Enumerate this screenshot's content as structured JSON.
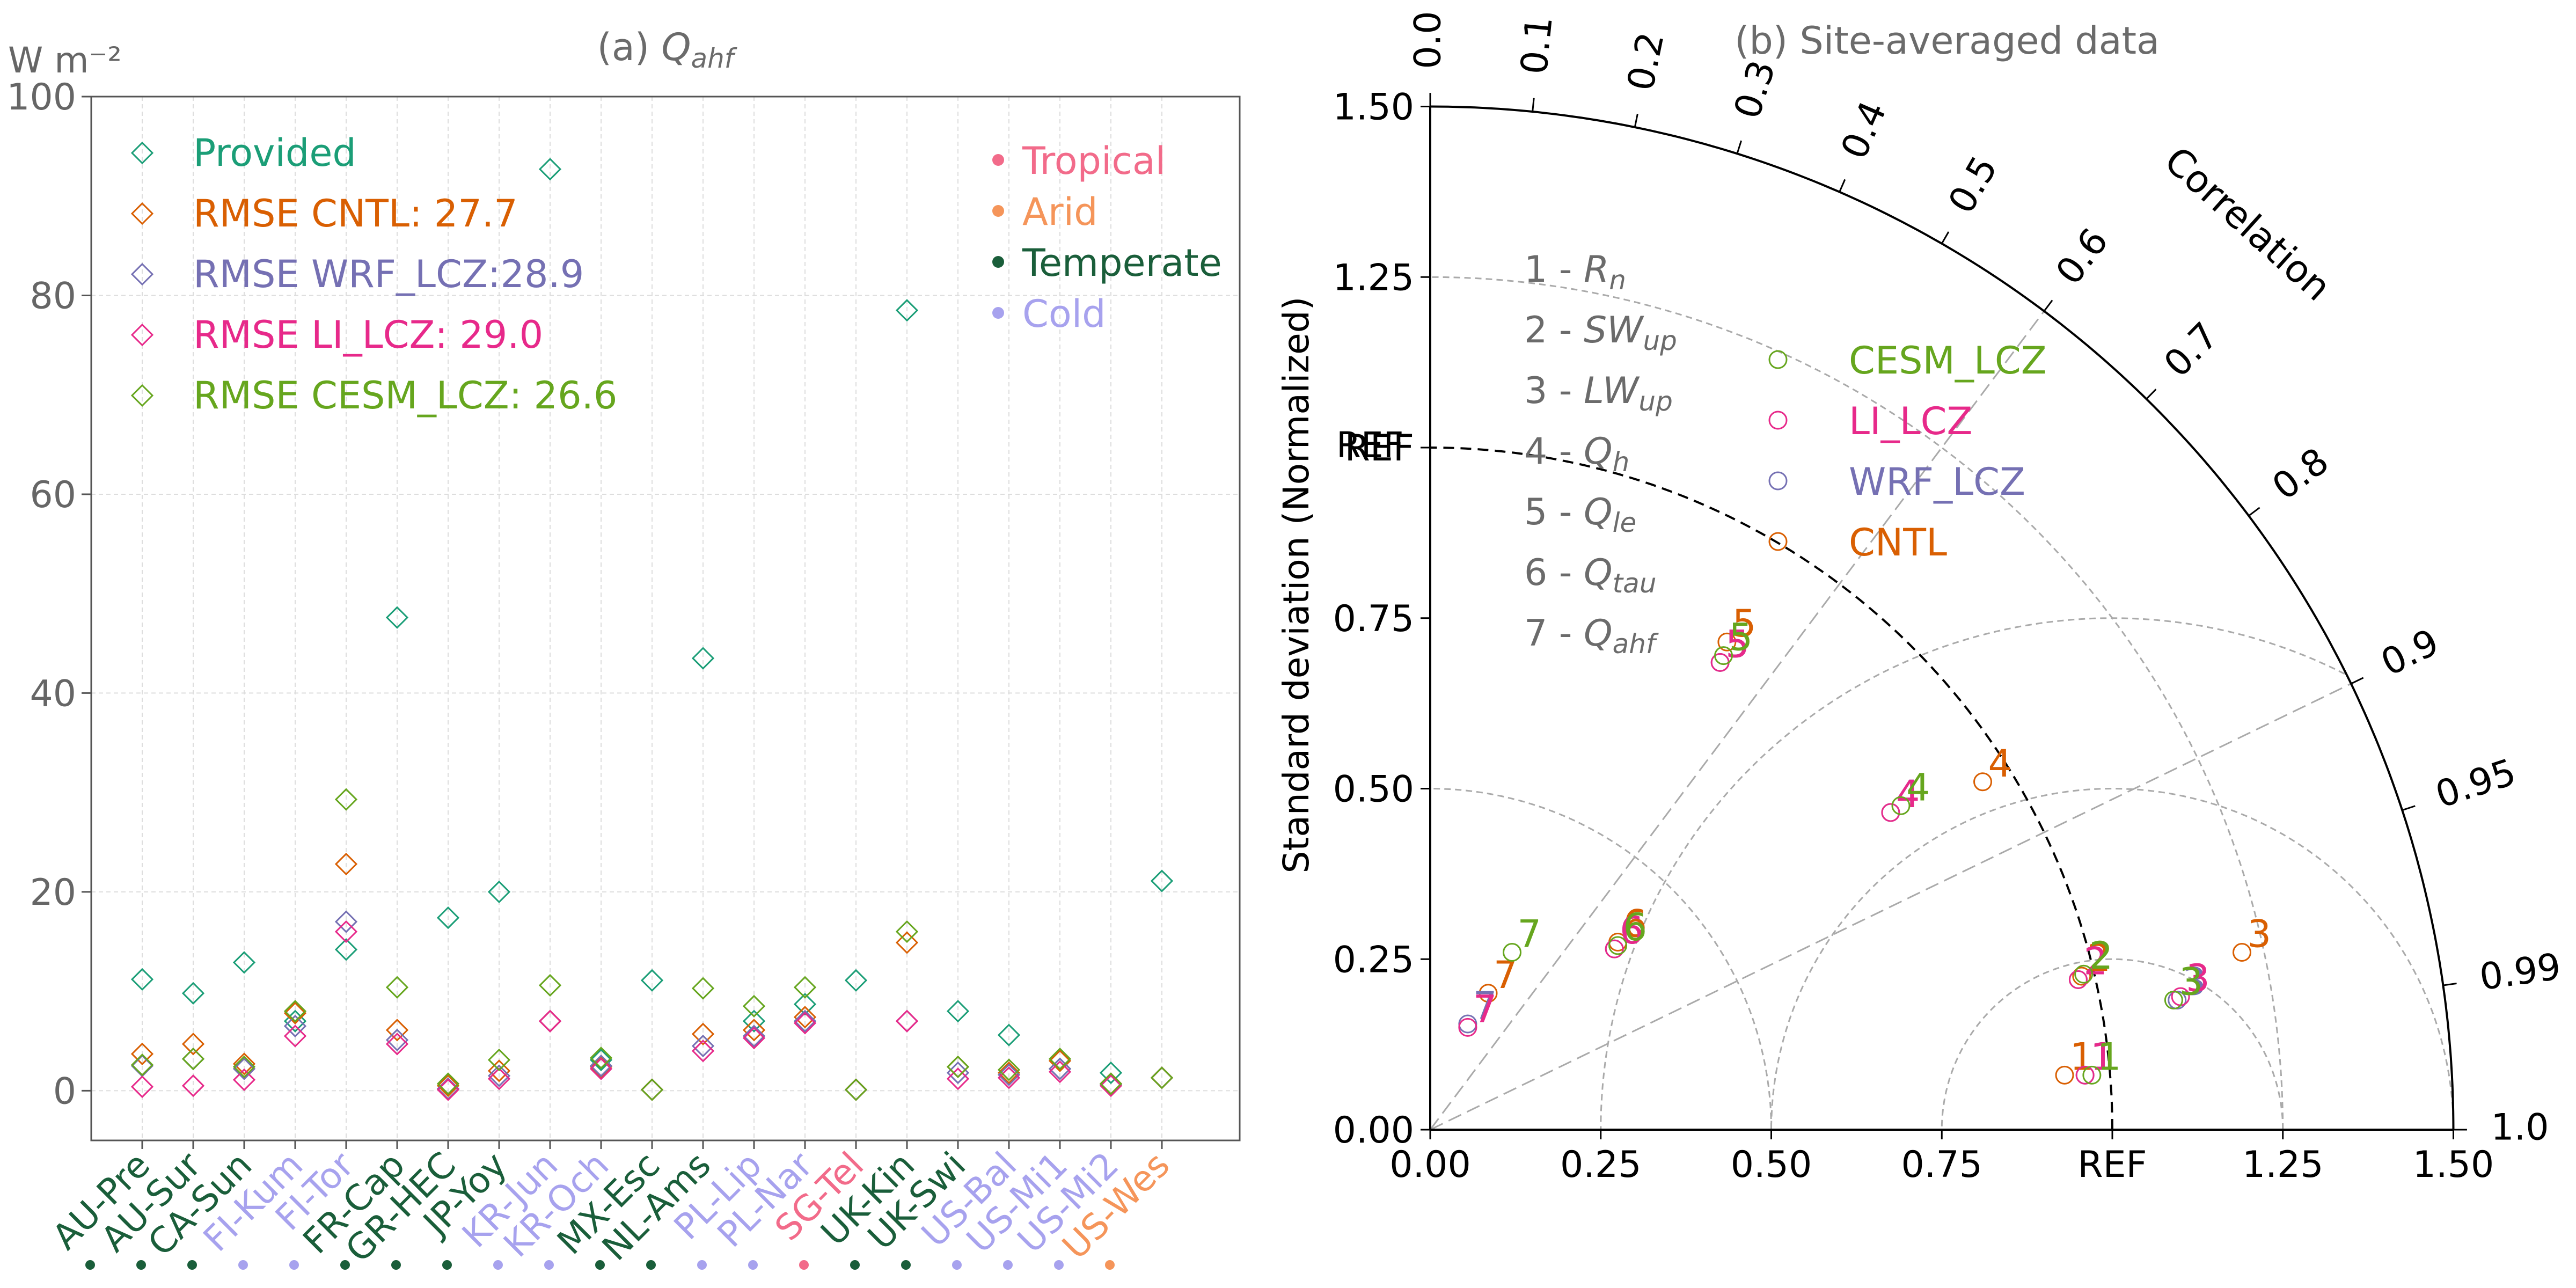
{
  "colors": {
    "provided": "#1b9e77",
    "cntl": "#d95f02",
    "wrf_lcz": "#7570b3",
    "li_lcz": "#e7298a",
    "cesm_lcz": "#66a61e",
    "tropical": "#f26b8a",
    "arid": "#f5955a",
    "temperate": "#1a5e3a",
    "cold": "#a7a2ee",
    "title_gray": "#6b6b6b",
    "axis_gray": "#666666",
    "grid_gray": "#dddddd",
    "guide_gray": "#aaaaaa"
  },
  "chart_data": [
    {
      "type": "scatter",
      "title_prefix": "(a) ",
      "title_symbol": "Q",
      "title_subscript": "ahf",
      "ylabel": "W m⁻²",
      "ylim": [
        -5,
        100
      ],
      "yticks": [
        0,
        20,
        40,
        60,
        80,
        100
      ],
      "grid": true,
      "marker": "diamond",
      "legend_position": "top-left",
      "sites": [
        "AU-Pre",
        "AU-Sur",
        "CA-Sun",
        "FI-Kum",
        "FI-Tor",
        "FR-Cap",
        "GR-HEC",
        "JP-Yoy",
        "KR-Jun",
        "KR-Och",
        "MX-Esc",
        "NL-Ams",
        "PL-Lip",
        "PL-Nar",
        "SG-Tel",
        "UK-Kin",
        "UK-Swi",
        "US-Bal",
        "US-Mi1",
        "US-Mi2",
        "US-Wes"
      ],
      "site_climate": [
        "temperate",
        "temperate",
        "temperate",
        "cold",
        "cold",
        "temperate",
        "temperate",
        "temperate",
        "cold",
        "cold",
        "temperate",
        "temperate",
        "cold",
        "cold",
        "tropical",
        "temperate",
        "temperate",
        "cold",
        "cold",
        "cold",
        "arid"
      ],
      "climate_legend": [
        {
          "key": "tropical",
          "label": "Tropical"
        },
        {
          "key": "arid",
          "label": "Arid"
        },
        {
          "key": "temperate",
          "label": "Temperate"
        },
        {
          "key": "cold",
          "label": "Cold"
        }
      ],
      "series": [
        {
          "key": "provided",
          "name": "Provided",
          "values": [
            11.2,
            9.8,
            12.9,
            7.0,
            14.2,
            47.6,
            17.4,
            20.0,
            92.7,
            3.1,
            11.1,
            43.5,
            7.0,
            8.7,
            11.1,
            78.5,
            8.0,
            5.6,
            2.2,
            1.8,
            21.1
          ]
        },
        {
          "key": "cntl",
          "name": "RMSE CNTL: 27.7",
          "values": [
            3.7,
            4.7,
            2.7,
            7.8,
            22.8,
            6.1,
            0.5,
            2.0,
            7.0,
            2.4,
            0.1,
            5.7,
            6.1,
            7.4,
            0.1,
            14.9,
            2.4,
            1.8,
            3.0,
            0.7,
            1.3
          ]
        },
        {
          "key": "wrf_lcz",
          "name": "RMSE WRF_LCZ:28.9",
          "values": [
            2.5,
            3.2,
            2.2,
            6.5,
            17.0,
            5.1,
            0.2,
            1.5,
            7.0,
            2.5,
            0.1,
            4.5,
            5.5,
            7.0,
            0.1,
            7.0,
            1.8,
            1.6,
            2.2,
            0.6,
            1.3
          ]
        },
        {
          "key": "li_lcz",
          "name": "RMSE LI_LCZ: 29.0",
          "values": [
            0.4,
            0.5,
            1.1,
            5.5,
            16.0,
            4.7,
            0.1,
            1.2,
            7.0,
            2.2,
            0.1,
            4.0,
            5.3,
            6.8,
            0.1,
            7.0,
            1.2,
            1.3,
            1.9,
            0.5,
            1.3
          ]
        },
        {
          "key": "cesm_lcz",
          "name": "RMSE CESM_LCZ: 26.6",
          "values": [
            2.6,
            3.2,
            2.4,
            8.0,
            29.3,
            10.4,
            0.7,
            3.1,
            10.6,
            3.3,
            0.1,
            10.3,
            8.5,
            10.4,
            0.1,
            16.0,
            2.4,
            2.1,
            3.2,
            0.7,
            1.3
          ]
        }
      ]
    },
    {
      "type": "taylor",
      "title": "(b) Site-averaged data",
      "ylabel": "Standard deviation (Normalized)",
      "ref_label": "REF",
      "correlation_label": "Correlation",
      "std_range": [
        0,
        1.5
      ],
      "std_ticks": [
        0.0,
        0.25,
        0.5,
        0.75,
        1.0,
        1.25,
        1.5
      ],
      "std_tick_labels": [
        "0.00",
        "0.25",
        "0.50",
        "0.75",
        "REF",
        "1.25",
        "1.50"
      ],
      "std_tick_labels_y": [
        "0.00",
        "0.25",
        "0.50",
        "0.75",
        "REF",
        "1.25",
        "1.50"
      ],
      "correlation_ticks": [
        0.0,
        0.1,
        0.2,
        0.3,
        0.4,
        0.5,
        0.6,
        0.7,
        0.8,
        0.9,
        0.95,
        0.99,
        1.0
      ],
      "correlation_tick_labels": [
        "0.0",
        "0.1",
        "0.2",
        "0.3",
        "0.4",
        "0.5",
        "0.6",
        "0.7",
        "0.8",
        "0.9",
        "0.95",
        "0.99",
        "1.0"
      ],
      "correlation_guides": [
        0.6,
        0.9
      ],
      "variables": [
        {
          "num": "1",
          "symbol": "R",
          "sub": "n"
        },
        {
          "num": "2",
          "symbol": "SW",
          "sub": "up"
        },
        {
          "num": "3",
          "symbol": "LW",
          "sub": "up"
        },
        {
          "num": "4",
          "symbol": "Q",
          "sub": "h"
        },
        {
          "num": "5",
          "symbol": "Q",
          "sub": "le"
        },
        {
          "num": "6",
          "symbol": "Q",
          "sub": "tau"
        },
        {
          "num": "7",
          "symbol": "Q",
          "sub": "ahf"
        }
      ],
      "legend": [
        {
          "key": "cesm_lcz",
          "label": "CESM_LCZ"
        },
        {
          "key": "li_lcz",
          "label": "LI_LCZ"
        },
        {
          "key": "wrf_lcz",
          "label": "WRF_LCZ"
        },
        {
          "key": "cntl",
          "label": "CNTL"
        }
      ],
      "points": [
        {
          "var": "1",
          "model": "cntl",
          "x": 0.93,
          "y": 0.08
        },
        {
          "var": "1",
          "model": "wrf_lcz",
          "x": 0.96,
          "y": 0.08
        },
        {
          "var": "1",
          "model": "li_lcz",
          "x": 0.96,
          "y": 0.08
        },
        {
          "var": "1",
          "model": "cesm_lcz",
          "x": 0.97,
          "y": 0.08
        },
        {
          "var": "2",
          "model": "cntl",
          "x": 0.955,
          "y": 0.225
        },
        {
          "var": "2",
          "model": "wrf_lcz",
          "x": 0.95,
          "y": 0.22
        },
        {
          "var": "2",
          "model": "li_lcz",
          "x": 0.95,
          "y": 0.22
        },
        {
          "var": "2",
          "model": "cesm_lcz",
          "x": 0.958,
          "y": 0.228
        },
        {
          "var": "3",
          "model": "cntl",
          "x": 1.19,
          "y": 0.26
        },
        {
          "var": "3",
          "model": "wrf_lcz",
          "x": 1.095,
          "y": 0.19
        },
        {
          "var": "3",
          "model": "li_lcz",
          "x": 1.1,
          "y": 0.195
        },
        {
          "var": "3",
          "model": "cesm_lcz",
          "x": 1.09,
          "y": 0.19
        },
        {
          "var": "4",
          "model": "cntl",
          "x": 0.81,
          "y": 0.51
        },
        {
          "var": "4",
          "model": "wrf_lcz",
          "x": 0.675,
          "y": 0.465
        },
        {
          "var": "4",
          "model": "li_lcz",
          "x": 0.675,
          "y": 0.465
        },
        {
          "var": "4",
          "model": "cesm_lcz",
          "x": 0.69,
          "y": 0.475
        },
        {
          "var": "5",
          "model": "cntl",
          "x": 0.435,
          "y": 0.715
        },
        {
          "var": "5",
          "model": "wrf_lcz",
          "x": 0.425,
          "y": 0.685
        },
        {
          "var": "5",
          "model": "li_lcz",
          "x": 0.425,
          "y": 0.685
        },
        {
          "var": "5",
          "model": "cesm_lcz",
          "x": 0.43,
          "y": 0.695
        },
        {
          "var": "6",
          "model": "cntl",
          "x": 0.275,
          "y": 0.275
        },
        {
          "var": "6",
          "model": "wrf_lcz",
          "x": 0.27,
          "y": 0.265
        },
        {
          "var": "6",
          "model": "li_lcz",
          "x": 0.27,
          "y": 0.265
        },
        {
          "var": "6",
          "model": "cesm_lcz",
          "x": 0.275,
          "y": 0.27
        },
        {
          "var": "7",
          "model": "cntl",
          "x": 0.085,
          "y": 0.2
        },
        {
          "var": "7",
          "model": "wrf_lcz",
          "x": 0.055,
          "y": 0.155
        },
        {
          "var": "7",
          "model": "li_lcz",
          "x": 0.055,
          "y": 0.15
        },
        {
          "var": "7",
          "model": "cesm_lcz",
          "x": 0.12,
          "y": 0.26
        }
      ]
    }
  ]
}
